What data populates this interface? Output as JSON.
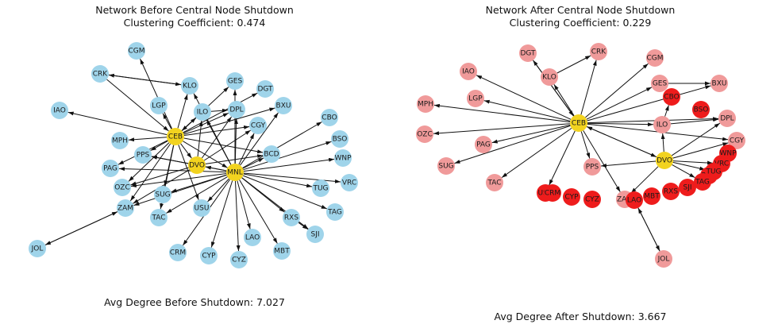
{
  "colors": {
    "before_node": "#9fd4ea",
    "central_node": "#f2d31f",
    "after_remaining": "#f09a9a",
    "after_isolated": "#ee1c1c",
    "edge": "#111111"
  },
  "panels": [
    {
      "title_line1": "Network Before Central Node Shutdown",
      "title_line2": "Clustering Coefficient: 0.474",
      "footer": "Avg Degree Before Shutdown: 7.027",
      "nodes": [
        {
          "id": "CGM",
          "kind": "normal"
        },
        {
          "id": "CRK",
          "kind": "normal"
        },
        {
          "id": "KLO",
          "kind": "normal"
        },
        {
          "id": "GES",
          "kind": "normal"
        },
        {
          "id": "DGT",
          "kind": "normal"
        },
        {
          "id": "IAO",
          "kind": "normal"
        },
        {
          "id": "LGP",
          "kind": "normal"
        },
        {
          "id": "ILO",
          "kind": "normal"
        },
        {
          "id": "DPL",
          "kind": "normal"
        },
        {
          "id": "BXU",
          "kind": "normal"
        },
        {
          "id": "CBO",
          "kind": "normal"
        },
        {
          "id": "CGY",
          "kind": "normal"
        },
        {
          "id": "CEB",
          "kind": "central"
        },
        {
          "id": "MPH",
          "kind": "normal"
        },
        {
          "id": "BSO",
          "kind": "normal"
        },
        {
          "id": "PPS",
          "kind": "normal"
        },
        {
          "id": "BCD",
          "kind": "normal"
        },
        {
          "id": "DVO",
          "kind": "central"
        },
        {
          "id": "PAG",
          "kind": "normal"
        },
        {
          "id": "WNP",
          "kind": "normal"
        },
        {
          "id": "MNL",
          "kind": "central"
        },
        {
          "id": "OZC",
          "kind": "normal"
        },
        {
          "id": "VRC",
          "kind": "normal"
        },
        {
          "id": "SUG",
          "kind": "normal"
        },
        {
          "id": "TUG",
          "kind": "normal"
        },
        {
          "id": "ZAM",
          "kind": "normal"
        },
        {
          "id": "USU",
          "kind": "normal"
        },
        {
          "id": "TAC",
          "kind": "normal"
        },
        {
          "id": "TAG",
          "kind": "normal"
        },
        {
          "id": "RXS",
          "kind": "normal"
        },
        {
          "id": "LAO",
          "kind": "normal"
        },
        {
          "id": "SJI",
          "kind": "normal"
        },
        {
          "id": "JOL",
          "kind": "normal"
        },
        {
          "id": "CRM",
          "kind": "normal"
        },
        {
          "id": "MBT",
          "kind": "normal"
        },
        {
          "id": "CYP",
          "kind": "normal"
        },
        {
          "id": "CYZ",
          "kind": "normal"
        }
      ]
    },
    {
      "title_line1": "Network After Central Node Shutdown",
      "title_line2": "Clustering Coefficient: 0.229",
      "footer": "Avg Degree After Shutdown: 3.667",
      "nodes": [
        {
          "id": "DGT",
          "kind": "remaining"
        },
        {
          "id": "CRK",
          "kind": "remaining"
        },
        {
          "id": "CGM",
          "kind": "remaining"
        },
        {
          "id": "IAO",
          "kind": "remaining"
        },
        {
          "id": "KLO",
          "kind": "remaining"
        },
        {
          "id": "GES",
          "kind": "remaining"
        },
        {
          "id": "BXU",
          "kind": "remaining"
        },
        {
          "id": "CBO",
          "kind": "isolated"
        },
        {
          "id": "MPH",
          "kind": "remaining"
        },
        {
          "id": "LGP",
          "kind": "remaining"
        },
        {
          "id": "BSO",
          "kind": "isolated"
        },
        {
          "id": "DPL",
          "kind": "remaining"
        },
        {
          "id": "CEB",
          "kind": "central"
        },
        {
          "id": "ILO",
          "kind": "remaining"
        },
        {
          "id": "OZC",
          "kind": "remaining"
        },
        {
          "id": "CGY",
          "kind": "remaining"
        },
        {
          "id": "PAG",
          "kind": "remaining"
        },
        {
          "id": "WNP",
          "kind": "isolated"
        },
        {
          "id": "DVO",
          "kind": "central"
        },
        {
          "id": "SUG",
          "kind": "remaining"
        },
        {
          "id": "PPS",
          "kind": "remaining"
        },
        {
          "id": "VRC",
          "kind": "isolated"
        },
        {
          "id": "BCD",
          "kind": "isolated"
        },
        {
          "id": "TUG",
          "kind": "isolated"
        },
        {
          "id": "TAG",
          "kind": "isolated"
        },
        {
          "id": "TAC",
          "kind": "remaining"
        },
        {
          "id": "USU",
          "kind": "isolated"
        },
        {
          "id": "CRM",
          "kind": "isolated"
        },
        {
          "id": "CYP",
          "kind": "isolated"
        },
        {
          "id": "CYZ",
          "kind": "isolated"
        },
        {
          "id": "ZAM",
          "kind": "remaining"
        },
        {
          "id": "LAO",
          "kind": "isolated"
        },
        {
          "id": "MBT",
          "kind": "isolated"
        },
        {
          "id": "RXS",
          "kind": "isolated"
        },
        {
          "id": "SJI",
          "kind": "isolated"
        },
        {
          "id": "JOL",
          "kind": "remaining"
        }
      ]
    }
  ]
}
